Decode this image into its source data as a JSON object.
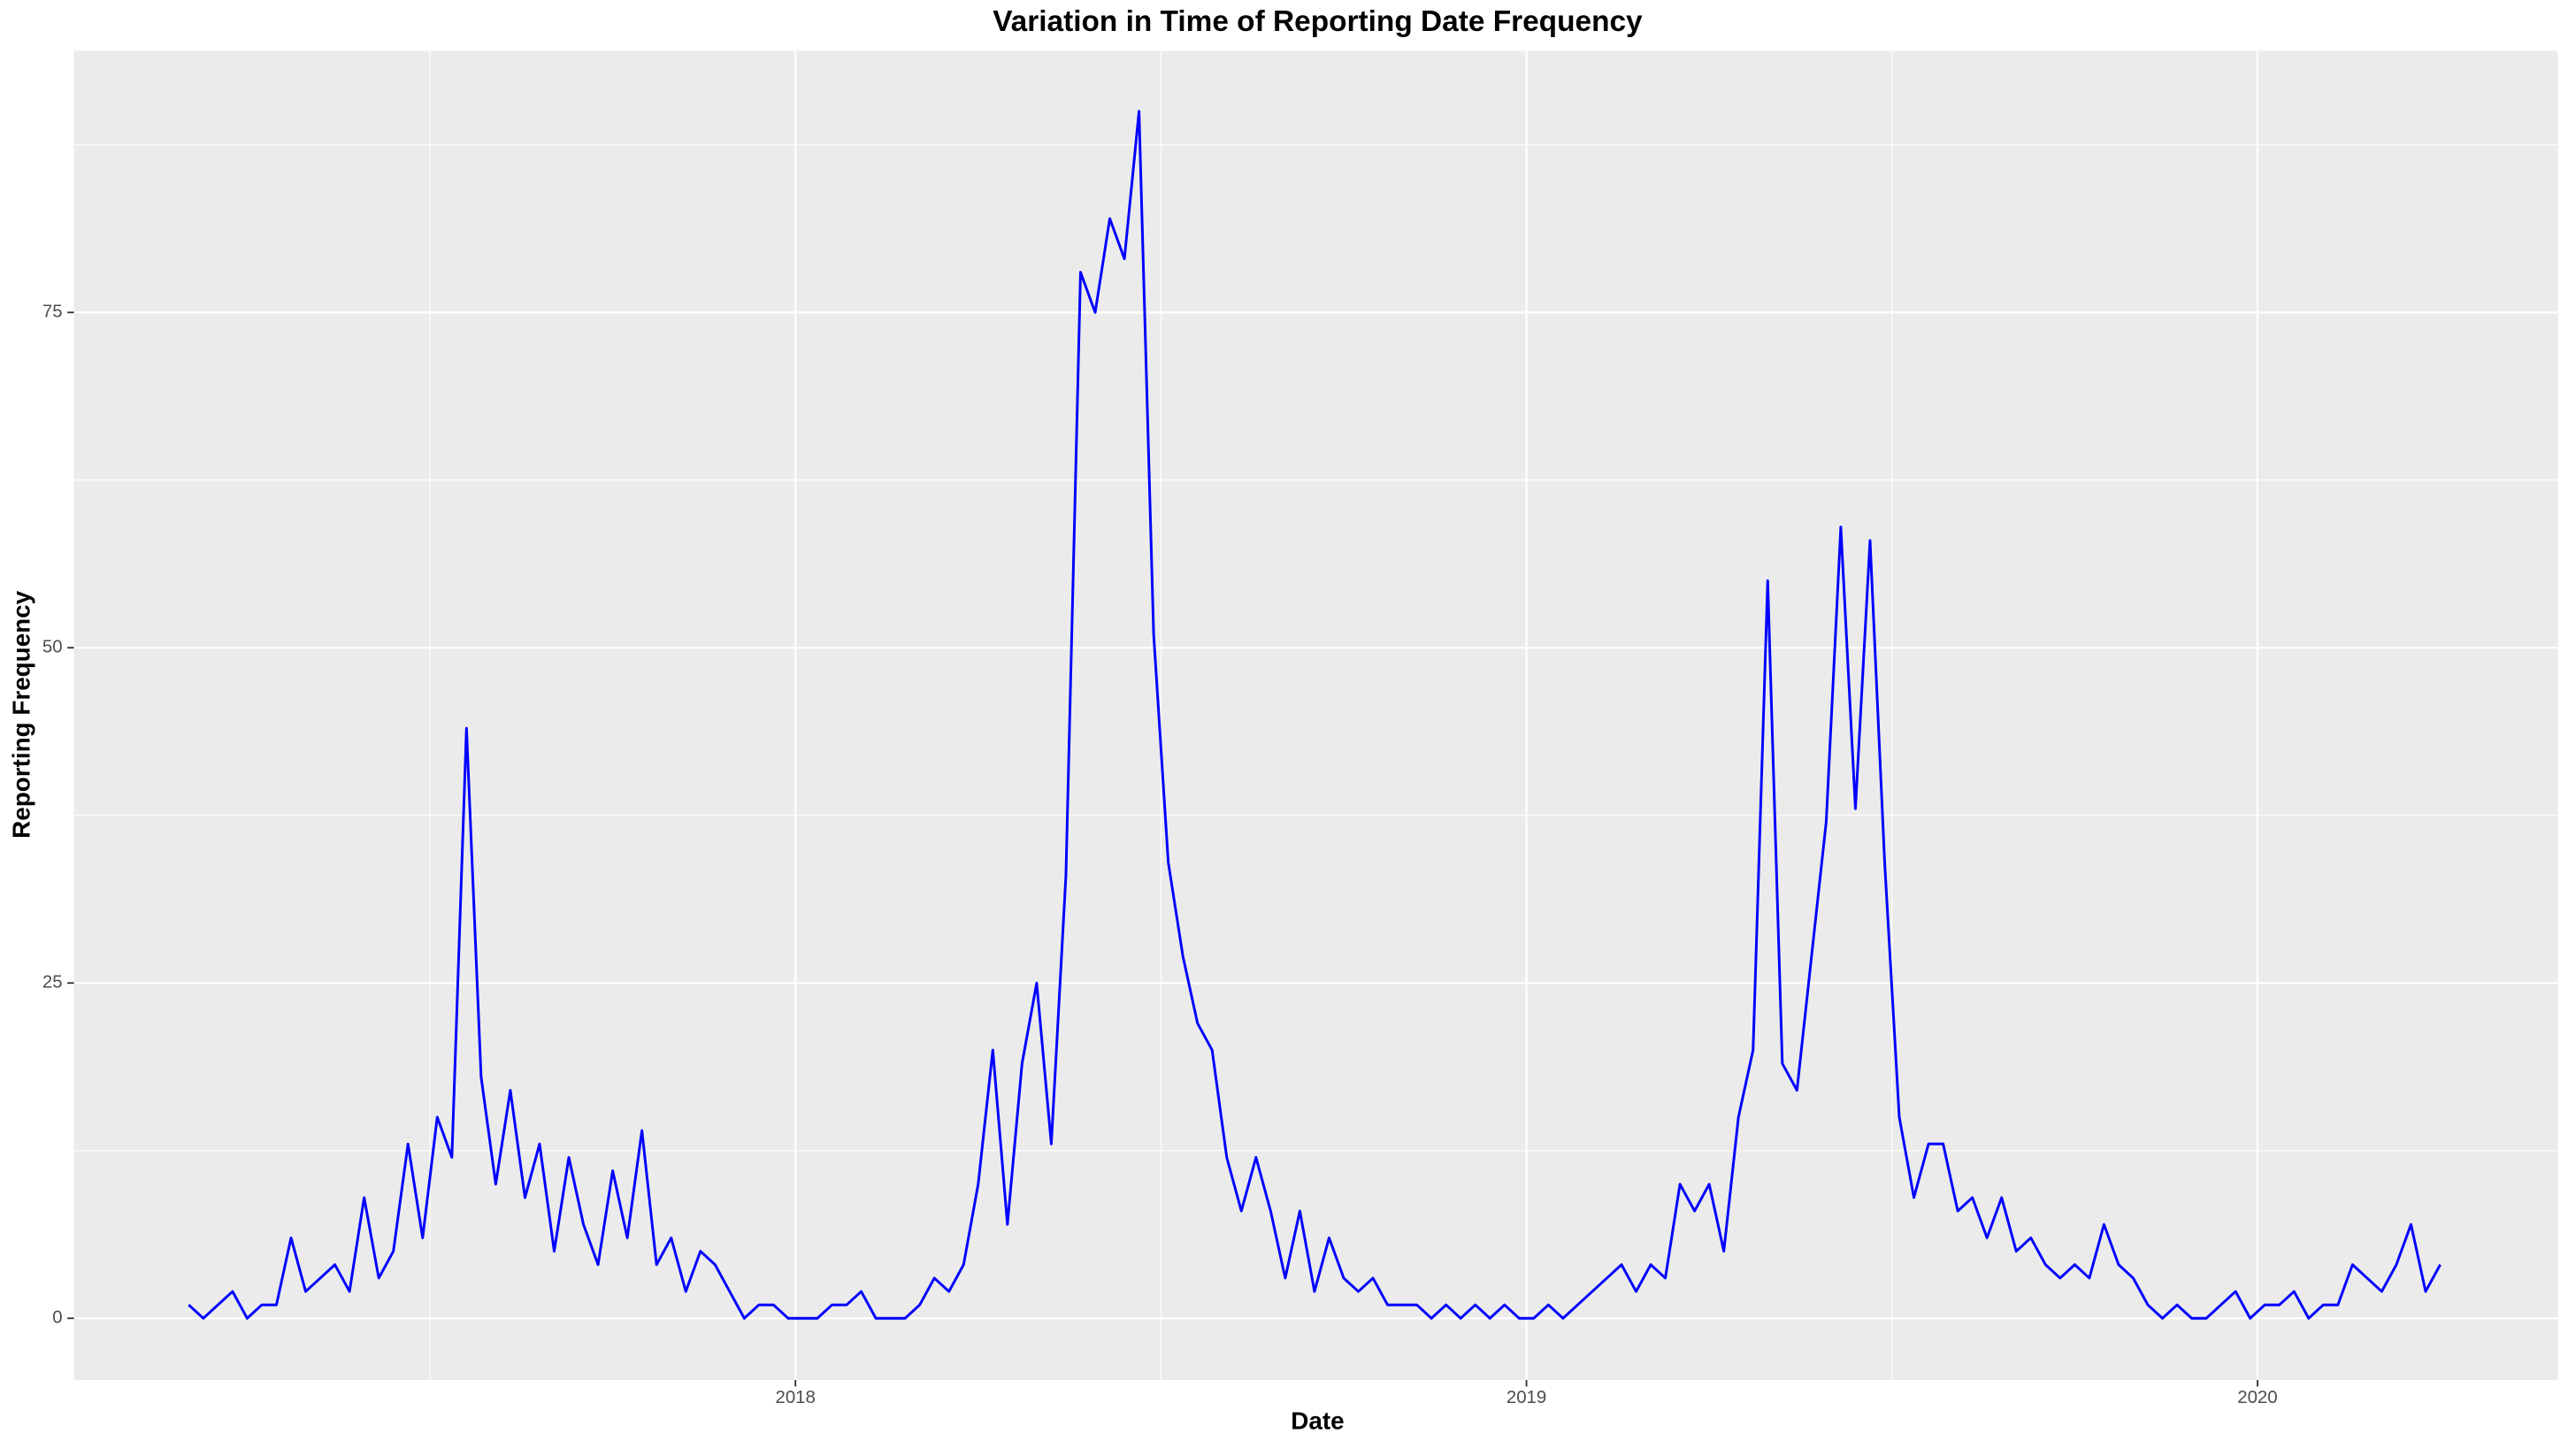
{
  "chart_data": {
    "type": "line",
    "title": "Variation in Time of Reporting Date Frequency",
    "x_label": "Date",
    "y_label": "Reporting Frequency",
    "color": "#0000ff",
    "grid": true,
    "xlim": [
      2017.013,
      2020.411
    ],
    "ylim": [
      -4.6,
      94.5
    ],
    "xticks": [
      2018,
      2019,
      2020
    ],
    "yticks": [
      0,
      25,
      50,
      75
    ],
    "x": [
      2017.17,
      2017.19,
      2017.21,
      2017.23,
      2017.25,
      2017.27,
      2017.29,
      2017.31,
      2017.33,
      2017.35,
      2017.37,
      2017.39,
      2017.41,
      2017.43,
      2017.45,
      2017.47,
      2017.49,
      2017.51,
      2017.53,
      2017.55,
      2017.57,
      2017.59,
      2017.61,
      2017.63,
      2017.65,
      2017.67,
      2017.69,
      2017.71,
      2017.73,
      2017.75,
      2017.77,
      2017.79,
      2017.81,
      2017.83,
      2017.85,
      2017.87,
      2017.89,
      2017.91,
      2017.93,
      2017.95,
      2017.97,
      2017.99,
      2018.01,
      2018.03,
      2018.05,
      2018.07,
      2018.09,
      2018.11,
      2018.13,
      2018.15,
      2018.17,
      2018.19,
      2018.21,
      2018.23,
      2018.25,
      2018.27,
      2018.29,
      2018.31,
      2018.33,
      2018.35,
      2018.37,
      2018.39,
      2018.41,
      2018.43,
      2018.45,
      2018.47,
      2018.49,
      2018.51,
      2018.53,
      2018.55,
      2018.57,
      2018.59,
      2018.61,
      2018.63,
      2018.65,
      2018.67,
      2018.69,
      2018.71,
      2018.73,
      2018.75,
      2018.77,
      2018.79,
      2018.81,
      2018.83,
      2018.85,
      2018.87,
      2018.89,
      2018.91,
      2018.93,
      2018.95,
      2018.97,
      2018.99,
      2019.01,
      2019.03,
      2019.05,
      2019.07,
      2019.09,
      2019.11,
      2019.13,
      2019.15,
      2019.17,
      2019.19,
      2019.21,
      2019.23,
      2019.25,
      2019.27,
      2019.29,
      2019.31,
      2019.33,
      2019.35,
      2019.37,
      2019.39,
      2019.41,
      2019.43,
      2019.45,
      2019.47,
      2019.49,
      2019.51,
      2019.53,
      2019.55,
      2019.57,
      2019.59,
      2019.61,
      2019.63,
      2019.65,
      2019.67,
      2019.69,
      2019.71,
      2019.73,
      2019.75,
      2019.77,
      2019.79,
      2019.81,
      2019.83,
      2019.85,
      2019.87,
      2019.89,
      2019.91,
      2019.93,
      2019.95,
      2019.97,
      2019.99,
      2020.01,
      2020.03,
      2020.05,
      2020.07,
      2020.09,
      2020.11,
      2020.13,
      2020.15,
      2020.17,
      2020.19,
      2020.21,
      2020.23,
      2020.25
    ],
    "values": [
      1,
      0,
      1,
      2,
      0,
      1,
      1,
      6,
      2,
      3,
      4,
      2,
      9,
      3,
      5,
      13,
      6,
      15,
      12,
      44,
      18,
      10,
      17,
      9,
      13,
      5,
      12,
      7,
      4,
      11,
      6,
      14,
      4,
      6,
      2,
      5,
      4,
      2,
      0,
      1,
      1,
      0,
      0,
      0,
      1,
      1,
      2,
      0,
      0,
      0,
      1,
      3,
      2,
      4,
      10,
      20,
      7,
      19,
      25,
      13,
      33,
      78,
      75,
      82,
      79,
      90,
      51,
      34,
      27,
      22,
      20,
      12,
      8,
      12,
      8,
      3,
      8,
      2,
      6,
      3,
      2,
      3,
      1,
      1,
      1,
      0,
      1,
      0,
      1,
      0,
      1,
      0,
      0,
      1,
      0,
      1,
      2,
      3,
      4,
      2,
      4,
      3,
      10,
      8,
      10,
      5,
      15,
      20,
      55,
      19,
      17,
      27,
      37,
      59,
      38,
      58,
      34,
      15,
      9,
      13,
      13,
      8,
      9,
      6,
      9,
      5,
      6,
      4,
      3,
      4,
      3,
      7,
      4,
      3,
      1,
      0,
      1,
      0,
      0,
      1,
      2,
      0,
      1,
      1,
      2,
      0,
      1,
      1,
      4,
      3,
      2,
      4,
      7,
      2,
      4
    ]
  }
}
